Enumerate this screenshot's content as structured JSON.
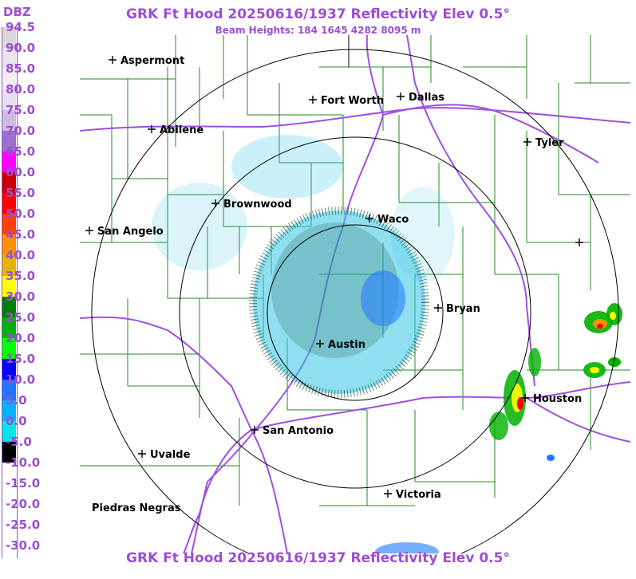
{
  "header": {
    "title": "GRK Ft Hood 20250616/1937 Reflectivity Elev 0.5°",
    "subtitle": "Beam Heights: 184 1645 4282 8095 m"
  },
  "footer": {
    "title": "GRK Ft Hood 20250616/1937 Reflectivity Elev 0.5°"
  },
  "legend": {
    "unit": "DBZ",
    "entries": [
      {
        "label": "94.5",
        "color": "#d8d8d8"
      },
      {
        "label": "90.0",
        "color": "#ebe3ee"
      },
      {
        "label": "85.0",
        "color": "#f2eef4"
      },
      {
        "label": "80.0",
        "color": "#e7dff0"
      },
      {
        "label": "75.0",
        "color": "#cdbbe0"
      },
      {
        "label": "70.0",
        "color": "#9b6ed0"
      },
      {
        "label": "65.0",
        "color": "#ff00ff"
      },
      {
        "label": "60.0",
        "color": "#c80000"
      },
      {
        "label": "55.0",
        "color": "#ff0000"
      },
      {
        "label": "50.0",
        "color": "#ff4000"
      },
      {
        "label": "45.0",
        "color": "#ff9000"
      },
      {
        "label": "40.0",
        "color": "#e6b400"
      },
      {
        "label": "35.0",
        "color": "#ffff00"
      },
      {
        "label": "30.0",
        "color": "#008000"
      },
      {
        "label": "25.0",
        "color": "#00b000"
      },
      {
        "label": "20.0",
        "color": "#00ff00"
      },
      {
        "label": "15.0",
        "color": "#0000ff"
      },
      {
        "label": "10.0",
        "color": "#1e78ff"
      },
      {
        "label": "5.0",
        "color": "#00b4ff"
      },
      {
        "label": "0.0",
        "color": "#00e6e6"
      },
      {
        "label": "-5.0",
        "color": "#000000"
      },
      {
        "label": "-10.0",
        "color": "#ffffff"
      },
      {
        "label": "-15.0",
        "color": "#ffffff"
      },
      {
        "label": "-20.0",
        "color": "#ffffff"
      },
      {
        "label": "-25.0",
        "color": "#ffffff"
      },
      {
        "label": "-30.0",
        "color": "#ffffff"
      }
    ]
  },
  "map": {
    "cities": [
      {
        "name": "Aspermont"
      },
      {
        "name": "Abilene"
      },
      {
        "name": "Fort Worth"
      },
      {
        "name": "Dallas"
      },
      {
        "name": "Tyler"
      },
      {
        "name": "Brownwood"
      },
      {
        "name": "Waco"
      },
      {
        "name": "San Angelo"
      },
      {
        "name": "Bryan"
      },
      {
        "name": "Austin"
      },
      {
        "name": "Houston"
      },
      {
        "name": "San Antonio"
      },
      {
        "name": "Uvalde"
      },
      {
        "name": "Victoria"
      },
      {
        "name": "Piedras Negras"
      },
      {
        "name": ""
      }
    ],
    "colors": {
      "county_lines": "#1e8c1e",
      "highways": "#a050e0",
      "range_rings": "#000000",
      "echo_light": "#33c4e6",
      "echo_medium": "#1e78ff",
      "echo_dark": "#0a3c20"
    }
  }
}
